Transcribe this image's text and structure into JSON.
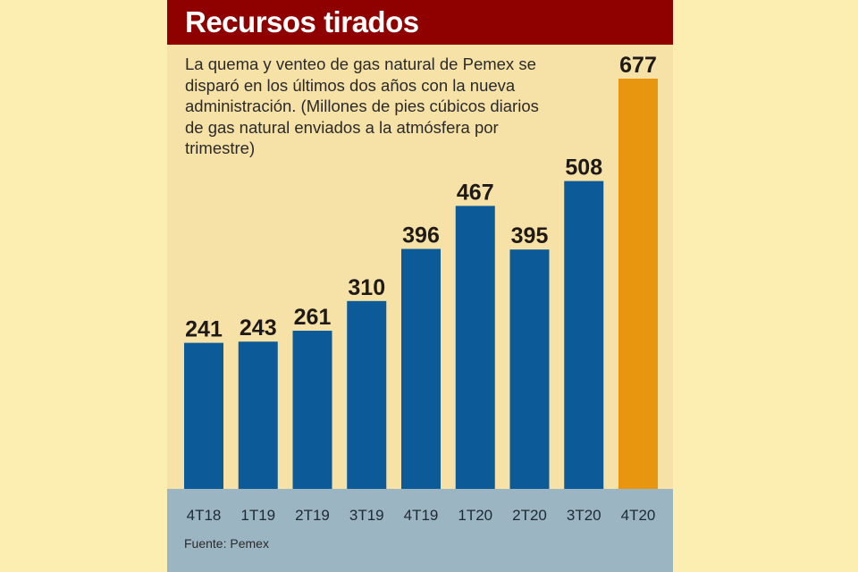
{
  "title": "Recursos tirados",
  "subtitle": "La quema y venteo de gas natural de Pemex se disparó en los últimos dos años con la nueva administración. (Millones de pies cúbicos diarios de gas natural enviados a la atmósfera por trimestre)",
  "source": "Fuente: Pemex",
  "colors": {
    "bar": "#0d5a99",
    "highlight": "#e8950f",
    "header": "#8f0000",
    "footer": "#9cb5c2"
  },
  "chart_data": {
    "type": "bar",
    "title": "Recursos tirados",
    "categories": [
      "4T18",
      "1T19",
      "2T19",
      "3T19",
      "4T19",
      "1T20",
      "2T20",
      "3T20",
      "4T20"
    ],
    "values": [
      241,
      243,
      261,
      310,
      396,
      467,
      395,
      508,
      677
    ],
    "highlight_index": 8,
    "xlabel": "",
    "ylabel": "",
    "ylim": [
      0,
      677
    ],
    "grid": false,
    "legend": "none"
  }
}
